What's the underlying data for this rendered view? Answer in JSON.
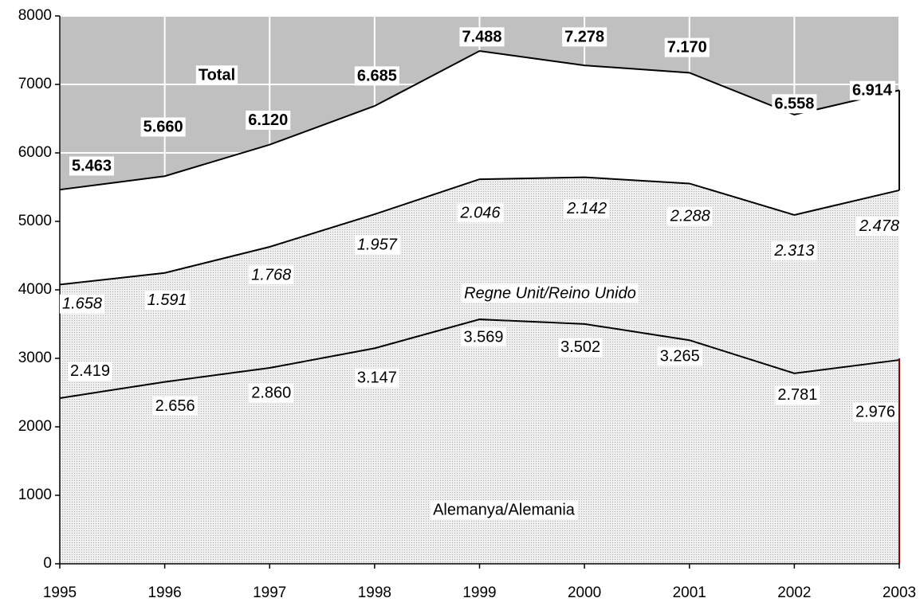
{
  "chart_data": {
    "type": "stacked_area",
    "xticks": [
      1995,
      1996,
      1997,
      1998,
      1999,
      2000,
      2001,
      2002,
      2003
    ],
    "xlim": [
      1995,
      2003
    ],
    "ylim": [
      0,
      8000
    ],
    "yticks": [
      0,
      1000,
      2000,
      3000,
      4000,
      5000,
      6000,
      7000,
      8000
    ],
    "grid": true,
    "background": "#c0c0c0",
    "series": [
      {
        "name": "Alemanya/Alemania",
        "color": "#d4d4d4",
        "values": [
          2419,
          2656,
          2860,
          3147,
          3569,
          3502,
          3265,
          2781,
          2976
        ],
        "value_labels": [
          "2.419",
          "2.656",
          "2.860",
          "3.147",
          "3.569",
          "3.502",
          "3.265",
          "2.781",
          "2.976"
        ]
      },
      {
        "name": "Regne Unit/Reino Unido",
        "color": "#d4d4d4",
        "values": [
          1658,
          1591,
          1768,
          1957,
          2046,
          2142,
          2288,
          2313,
          2478
        ],
        "value_labels": [
          "1.658",
          "1.591",
          "1.768",
          "1.957",
          "2.046",
          "2.142",
          "2.288",
          "2.313",
          "2.478"
        ]
      },
      {
        "name": "Total",
        "color": "#ffffff",
        "stacked": false,
        "values": [
          5463,
          5660,
          6120,
          6685,
          7488,
          7278,
          7170,
          6558,
          6914
        ],
        "value_labels": [
          "5.463",
          "5.660",
          "6.120",
          "6.685",
          "7.488",
          "7.278",
          "7.170",
          "6.558",
          "6.914"
        ]
      }
    ]
  }
}
